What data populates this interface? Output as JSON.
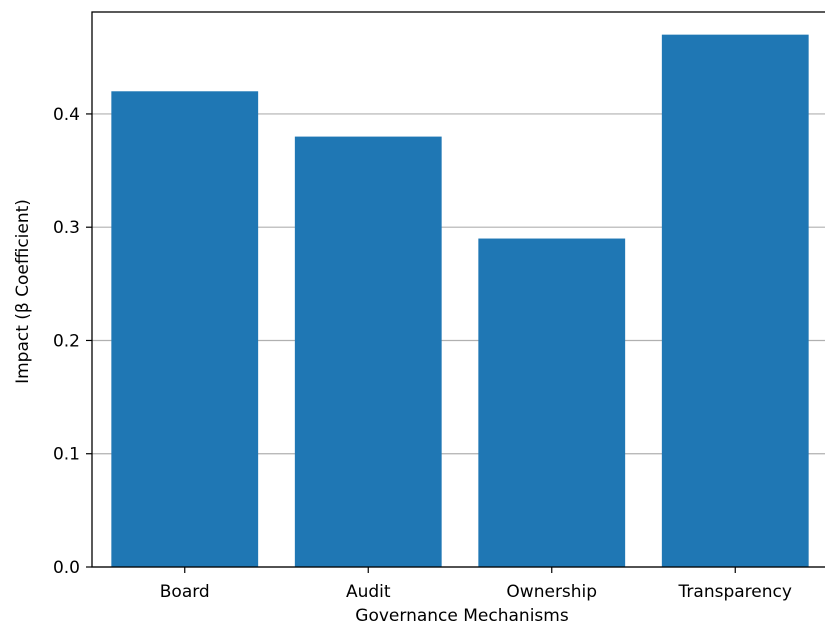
{
  "chart_data": {
    "type": "bar",
    "title": "",
    "xlabel": "Governance Mechanisms",
    "ylabel": "Impact (β Coefficient)",
    "categories": [
      "Board",
      "Audit",
      "Ownership",
      "Transparency"
    ],
    "values": [
      0.42,
      0.38,
      0.29,
      0.47
    ],
    "ylim": [
      0,
      0.49
    ],
    "yticks": [
      0.0,
      0.1,
      0.2,
      0.3,
      0.4
    ],
    "ytick_labels": [
      "0.0",
      "0.1",
      "0.2",
      "0.3",
      "0.4"
    ],
    "grid": "horizontal",
    "bar_color": "#1f77b4",
    "grid_color": "#b0b0b0"
  }
}
